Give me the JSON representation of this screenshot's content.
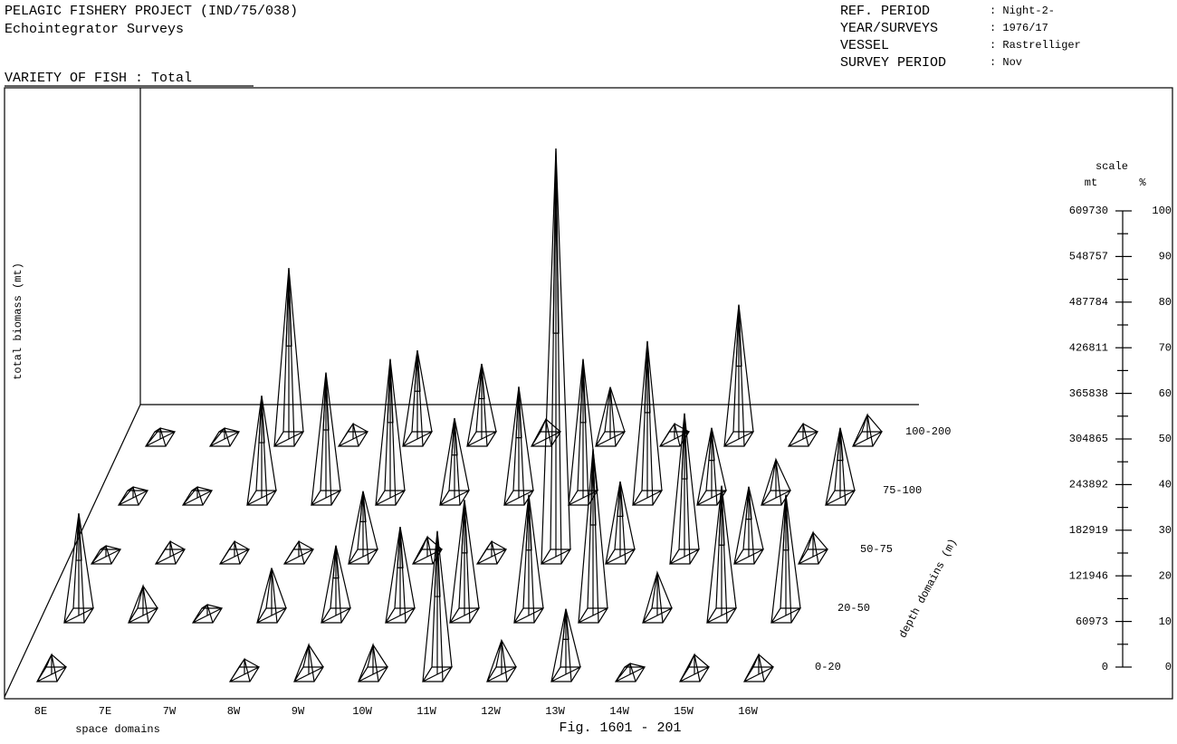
{
  "chart_data": {
    "type": "pyramid3d",
    "project": "PELAGIC FISHERY PROJECT (IND/75/038)",
    "subtitle": "Echointegrator Surveys",
    "info": [
      {
        "label": "REF. PERIOD",
        "value": ": Night-2-"
      },
      {
        "label": "YEAR/SURVEYS",
        "value": ": 1976/17"
      },
      {
        "label": "VESSEL",
        "value": ": Rastrelliger"
      },
      {
        "label": "SURVEY PERIOD",
        "value": ": Nov"
      }
    ],
    "title": "VARIETY OF FISH : Total",
    "y_label": "total biomass (mt)",
    "x_label": "space domains",
    "depth_label": "depth domains (m)",
    "scale_label": "scale",
    "y_unit": "mt",
    "y2_unit": "%",
    "figure": "Fig. 1601 - 201",
    "categories": [
      "8E",
      "7E",
      "7W",
      "8W",
      "9W",
      "10W",
      "11W",
      "12W",
      "13W",
      "14W",
      "15W",
      "16W"
    ],
    "series": [
      {
        "name": "0-20",
        "color": "#000000",
        "values": [
          24000,
          null,
          null,
          18000,
          37000,
          37000,
          189000,
          43000,
          85000,
          12000,
          24000,
          24000
        ]
      },
      {
        "name": "20-50",
        "color": "#000000",
        "values": [
          134000,
          37000,
          12000,
          61000,
          91000,
          116000,
          152000,
          159000,
          220000,
          55000,
          171000,
          159000
        ]
      },
      {
        "name": "50-75",
        "color": "#000000",
        "values": [
          12000,
          18000,
          18000,
          18000,
          85000,
          24000,
          18000,
          543000,
          98000,
          189000,
          91000,
          30000
        ]
      },
      {
        "name": "75-100",
        "color": "#000000",
        "values": [
          12000,
          12000,
          134000,
          165000,
          183000,
          104000,
          146000,
          183000,
          207000,
          91000,
          49000,
          91000
        ]
      },
      {
        "name": "100-200",
        "color": "#000000",
        "values": [
          12000,
          12000,
          226000,
          18000,
          116000,
          98000,
          24000,
          67000,
          18000,
          177000,
          18000,
          30000
        ]
      }
    ],
    "ylim": [
      0,
      609730
    ],
    "yticks": [
      0,
      60973,
      121946,
      182919,
      243892,
      304865,
      365838,
      426811,
      487784,
      548757,
      609730
    ],
    "y2lim": [
      0,
      100
    ],
    "y2ticks": [
      0,
      10,
      20,
      30,
      40,
      50,
      60,
      70,
      80,
      90,
      100
    ]
  }
}
